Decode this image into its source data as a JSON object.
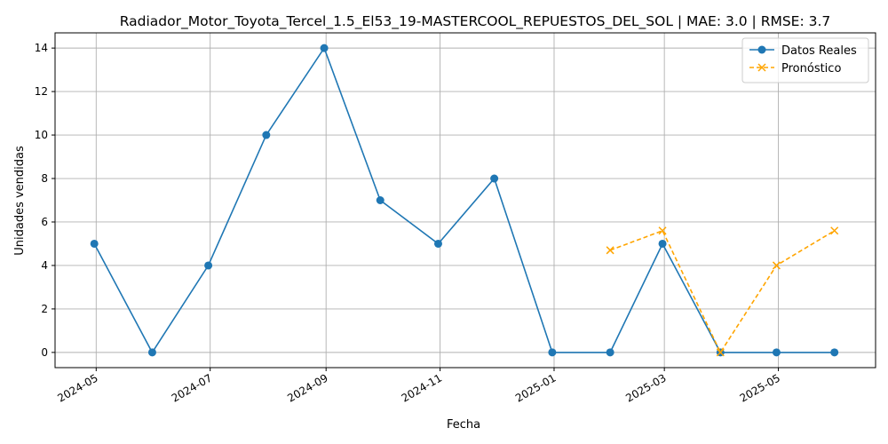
{
  "chart_data": {
    "type": "line",
    "title": "Radiador_Motor_Toyota_Tercel_1.5_El53_19-MASTERCOOL_REPUESTOS_DEL_SOL | MAE: 3.0 | RMSE: 3.7",
    "xlabel": "Fecha",
    "ylabel": "Unidades vendidas",
    "ylim": [
      -0.7,
      14.7
    ],
    "xlim": [
      "2024-04-09",
      "2025-06-22"
    ],
    "grid": true,
    "legend_position": "top-right",
    "x_ticks": [
      "2024-05",
      "2024-07",
      "2024-09",
      "2024-11",
      "2025-01",
      "2025-03",
      "2025-05"
    ],
    "y_ticks": [
      0,
      2,
      4,
      6,
      8,
      10,
      12,
      14
    ],
    "series": [
      {
        "name": "Datos Reales",
        "color": "#1f77b4",
        "line_style": "solid",
        "marker": "circle",
        "x": [
          "2024-04-30",
          "2024-05-31",
          "2024-06-30",
          "2024-07-31",
          "2024-08-31",
          "2024-09-30",
          "2024-10-31",
          "2024-11-30",
          "2024-12-31",
          "2025-01-31",
          "2025-02-28",
          "2025-03-31",
          "2025-04-30",
          "2025-05-31"
        ],
        "values": [
          5,
          0,
          4,
          10,
          14,
          7,
          5,
          8,
          0,
          0,
          5,
          0,
          0,
          0
        ]
      },
      {
        "name": "Pronóstico",
        "color": "#ffa500",
        "line_style": "dashed",
        "marker": "x",
        "x": [
          "2025-01-31",
          "2025-02-28",
          "2025-03-31",
          "2025-04-30",
          "2025-05-31"
        ],
        "values": [
          4.7,
          5.6,
          0.0,
          4.0,
          5.6
        ]
      }
    ]
  }
}
